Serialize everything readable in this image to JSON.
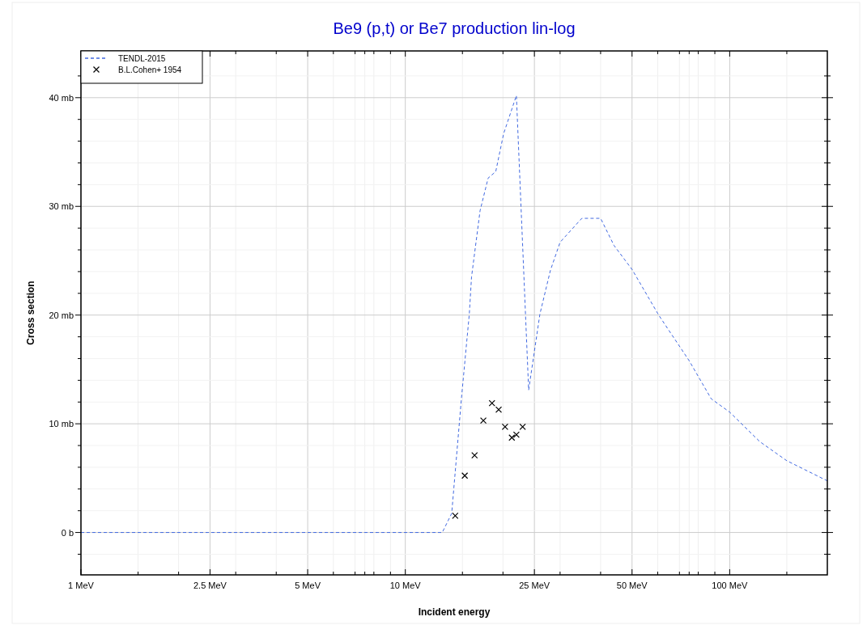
{
  "chart_data": {
    "type": "line",
    "title": "Be9 (p,t) or Be7 production lin-log",
    "xlabel": "Incident energy",
    "ylabel": "Cross section",
    "log": "x",
    "grid": true,
    "legend": "top left",
    "xlim": [
      1,
      200
    ],
    "xticks": [
      {
        "value": 1,
        "label": "1 MeV"
      },
      {
        "value": 1.5,
        "label": null
      },
      {
        "value": 2,
        "label": null
      },
      {
        "value": 2.5,
        "label": "2.5 MeV"
      },
      {
        "value": 3,
        "label": null
      },
      {
        "value": 4,
        "label": null
      },
      {
        "value": 5,
        "label": "5 MeV"
      },
      {
        "value": 6,
        "label": null
      },
      {
        "value": 7,
        "label": null
      },
      {
        "value": 7.5,
        "label": null
      },
      {
        "value": 8,
        "label": null
      },
      {
        "value": 9,
        "label": null
      },
      {
        "value": 10,
        "label": "10 MeV"
      },
      {
        "value": 15,
        "label": null
      },
      {
        "value": 20,
        "label": null
      },
      {
        "value": 25,
        "label": "25 MeV"
      },
      {
        "value": 30,
        "label": null
      },
      {
        "value": 40,
        "label": null
      },
      {
        "value": 50,
        "label": "50 MeV"
      },
      {
        "value": 60,
        "label": null
      },
      {
        "value": 70,
        "label": null
      },
      {
        "value": 75,
        "label": null
      },
      {
        "value": 80,
        "label": null
      },
      {
        "value": 90,
        "label": null
      },
      {
        "value": 100,
        "label": "100 MeV"
      },
      {
        "value": 150,
        "label": null
      }
    ],
    "ylim": [
      -3.9,
      44.3
    ],
    "yticks": [
      {
        "value": -2,
        "label": null
      },
      {
        "value": 0,
        "label": "0 b"
      },
      {
        "value": 2,
        "label": null
      },
      {
        "value": 4,
        "label": null
      },
      {
        "value": 6,
        "label": null
      },
      {
        "value": 8,
        "label": null
      },
      {
        "value": 10,
        "label": "10 mb"
      },
      {
        "value": 12,
        "label": null
      },
      {
        "value": 14,
        "label": null
      },
      {
        "value": 16,
        "label": null
      },
      {
        "value": 18,
        "label": null
      },
      {
        "value": 20,
        "label": "20 mb"
      },
      {
        "value": 22,
        "label": null
      },
      {
        "value": 24,
        "label": null
      },
      {
        "value": 26,
        "label": null
      },
      {
        "value": 28,
        "label": null
      },
      {
        "value": 30,
        "label": "30 mb"
      },
      {
        "value": 32,
        "label": null
      },
      {
        "value": 34,
        "label": null
      },
      {
        "value": 36,
        "label": null
      },
      {
        "value": 38,
        "label": null
      },
      {
        "value": 40,
        "label": "40 mb"
      },
      {
        "value": 42,
        "label": null
      }
    ],
    "series": [
      {
        "name": "TENDL-2015",
        "color": "#4169e1",
        "line_style": "dashed",
        "marker": "none",
        "x": [
          1,
          13.0,
          13.9,
          14.9,
          15.75,
          16.0,
          17.0,
          18.0,
          19.0,
          20.1,
          22.0,
          24.0,
          26.0,
          28.0,
          30.0,
          35.0,
          40.0,
          44,
          50,
          60.4,
          75,
          87.7,
          100,
          123.9,
          150,
          200
        ],
        "values": [
          0,
          0,
          1.76,
          12.4,
          20.1,
          23.5,
          29.6,
          32.6,
          33.2,
          36.7,
          40.2,
          13.1,
          20.1,
          24.1,
          26.7,
          28.9,
          28.9,
          26.4,
          24.2,
          20.0,
          15.8,
          12.3,
          11.07,
          8.35,
          6.6,
          4.75
        ]
      },
      {
        "name": "B.L.Cohen+ 1954",
        "type": "scatter",
        "color": "#000000",
        "marker": "cross",
        "x": [
          14.25,
          15.25,
          16.35,
          17.4,
          18.5,
          19.4,
          20.3,
          21.3,
          22.0,
          23.0
        ],
        "values": [
          1.54,
          5.23,
          7.1,
          10.3,
          11.9,
          11.3,
          9.72,
          8.73,
          9.0,
          9.72
        ]
      }
    ]
  }
}
